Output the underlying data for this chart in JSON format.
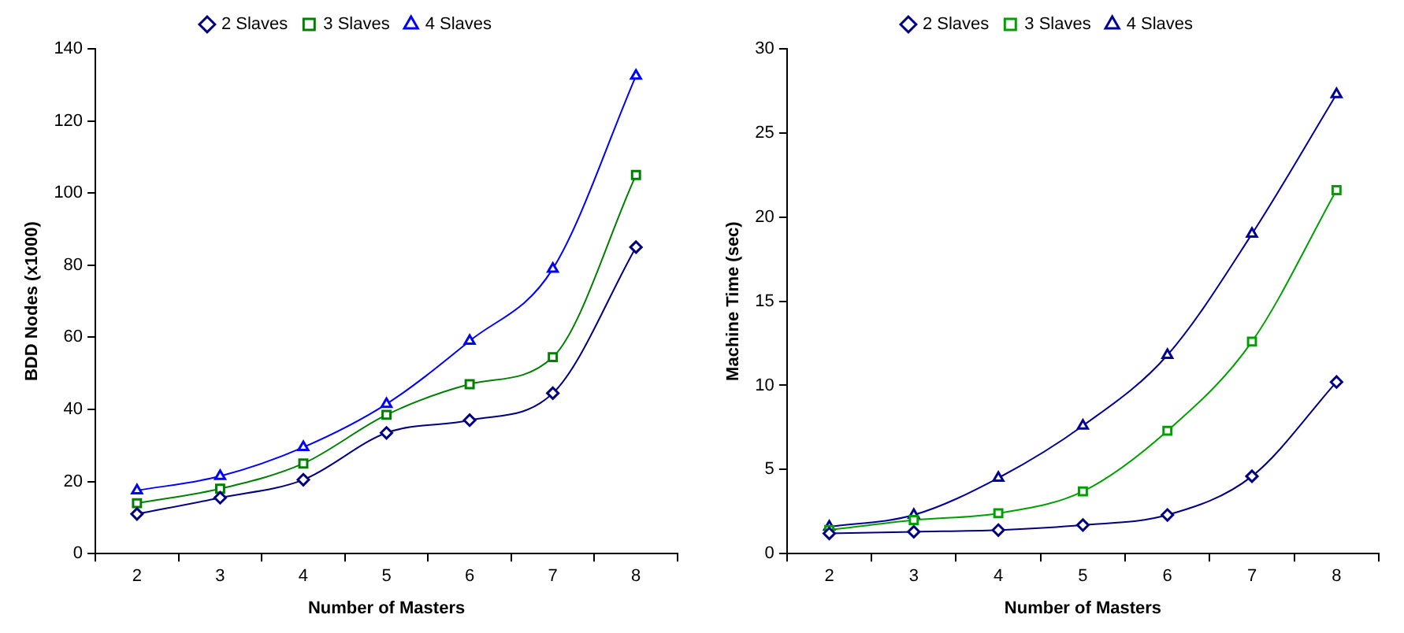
{
  "chart_data": [
    {
      "type": "line",
      "xlabel": "Number of Masters",
      "ylabel": "BDD Nodes (x1000)",
      "categories": [
        "2",
        "3",
        "4",
        "5",
        "6",
        "7",
        "8"
      ],
      "series": [
        {
          "name": "2 Slaves",
          "color": "#000080",
          "marker": "diamond",
          "values": [
            11,
            15.5,
            20.5,
            33.5,
            37,
            44.5,
            85
          ]
        },
        {
          "name": "3 Slaves",
          "color": "#008000",
          "marker": "square",
          "values": [
            14,
            18,
            25,
            38.5,
            47,
            54.5,
            105
          ]
        },
        {
          "name": "4 Slaves",
          "color": "#0000ff",
          "marker": "triangle",
          "values": [
            17.5,
            21.5,
            29.5,
            41.5,
            59,
            79,
            132.5
          ]
        }
      ],
      "ylim": [
        0,
        140
      ],
      "yticks": [
        0,
        20,
        40,
        60,
        80,
        100,
        120,
        140
      ],
      "grid": false,
      "legend": "top"
    },
    {
      "type": "line",
      "xlabel": "Number of Masters",
      "ylabel": "Machine Time (sec)",
      "categories": [
        "2",
        "3",
        "4",
        "5",
        "6",
        "7",
        "8"
      ],
      "series": [
        {
          "name": "2 Slaves",
          "color": "#000080",
          "marker": "diamond",
          "values": [
            1.2,
            1.3,
            1.4,
            1.7,
            2.3,
            4.6,
            10.2
          ]
        },
        {
          "name": "3 Slaves",
          "color": "#00a000",
          "marker": "square",
          "values": [
            1.4,
            2.0,
            2.4,
            3.7,
            7.3,
            12.6,
            21.6
          ]
        },
        {
          "name": "4 Slaves",
          "color": "#000099",
          "marker": "triangle",
          "values": [
            1.6,
            2.3,
            4.5,
            7.6,
            11.8,
            19.0,
            27.3
          ]
        }
      ],
      "ylim": [
        0,
        30
      ],
      "yticks": [
        0,
        5,
        10,
        15,
        20,
        25,
        30
      ],
      "grid": false,
      "legend": "top"
    }
  ]
}
